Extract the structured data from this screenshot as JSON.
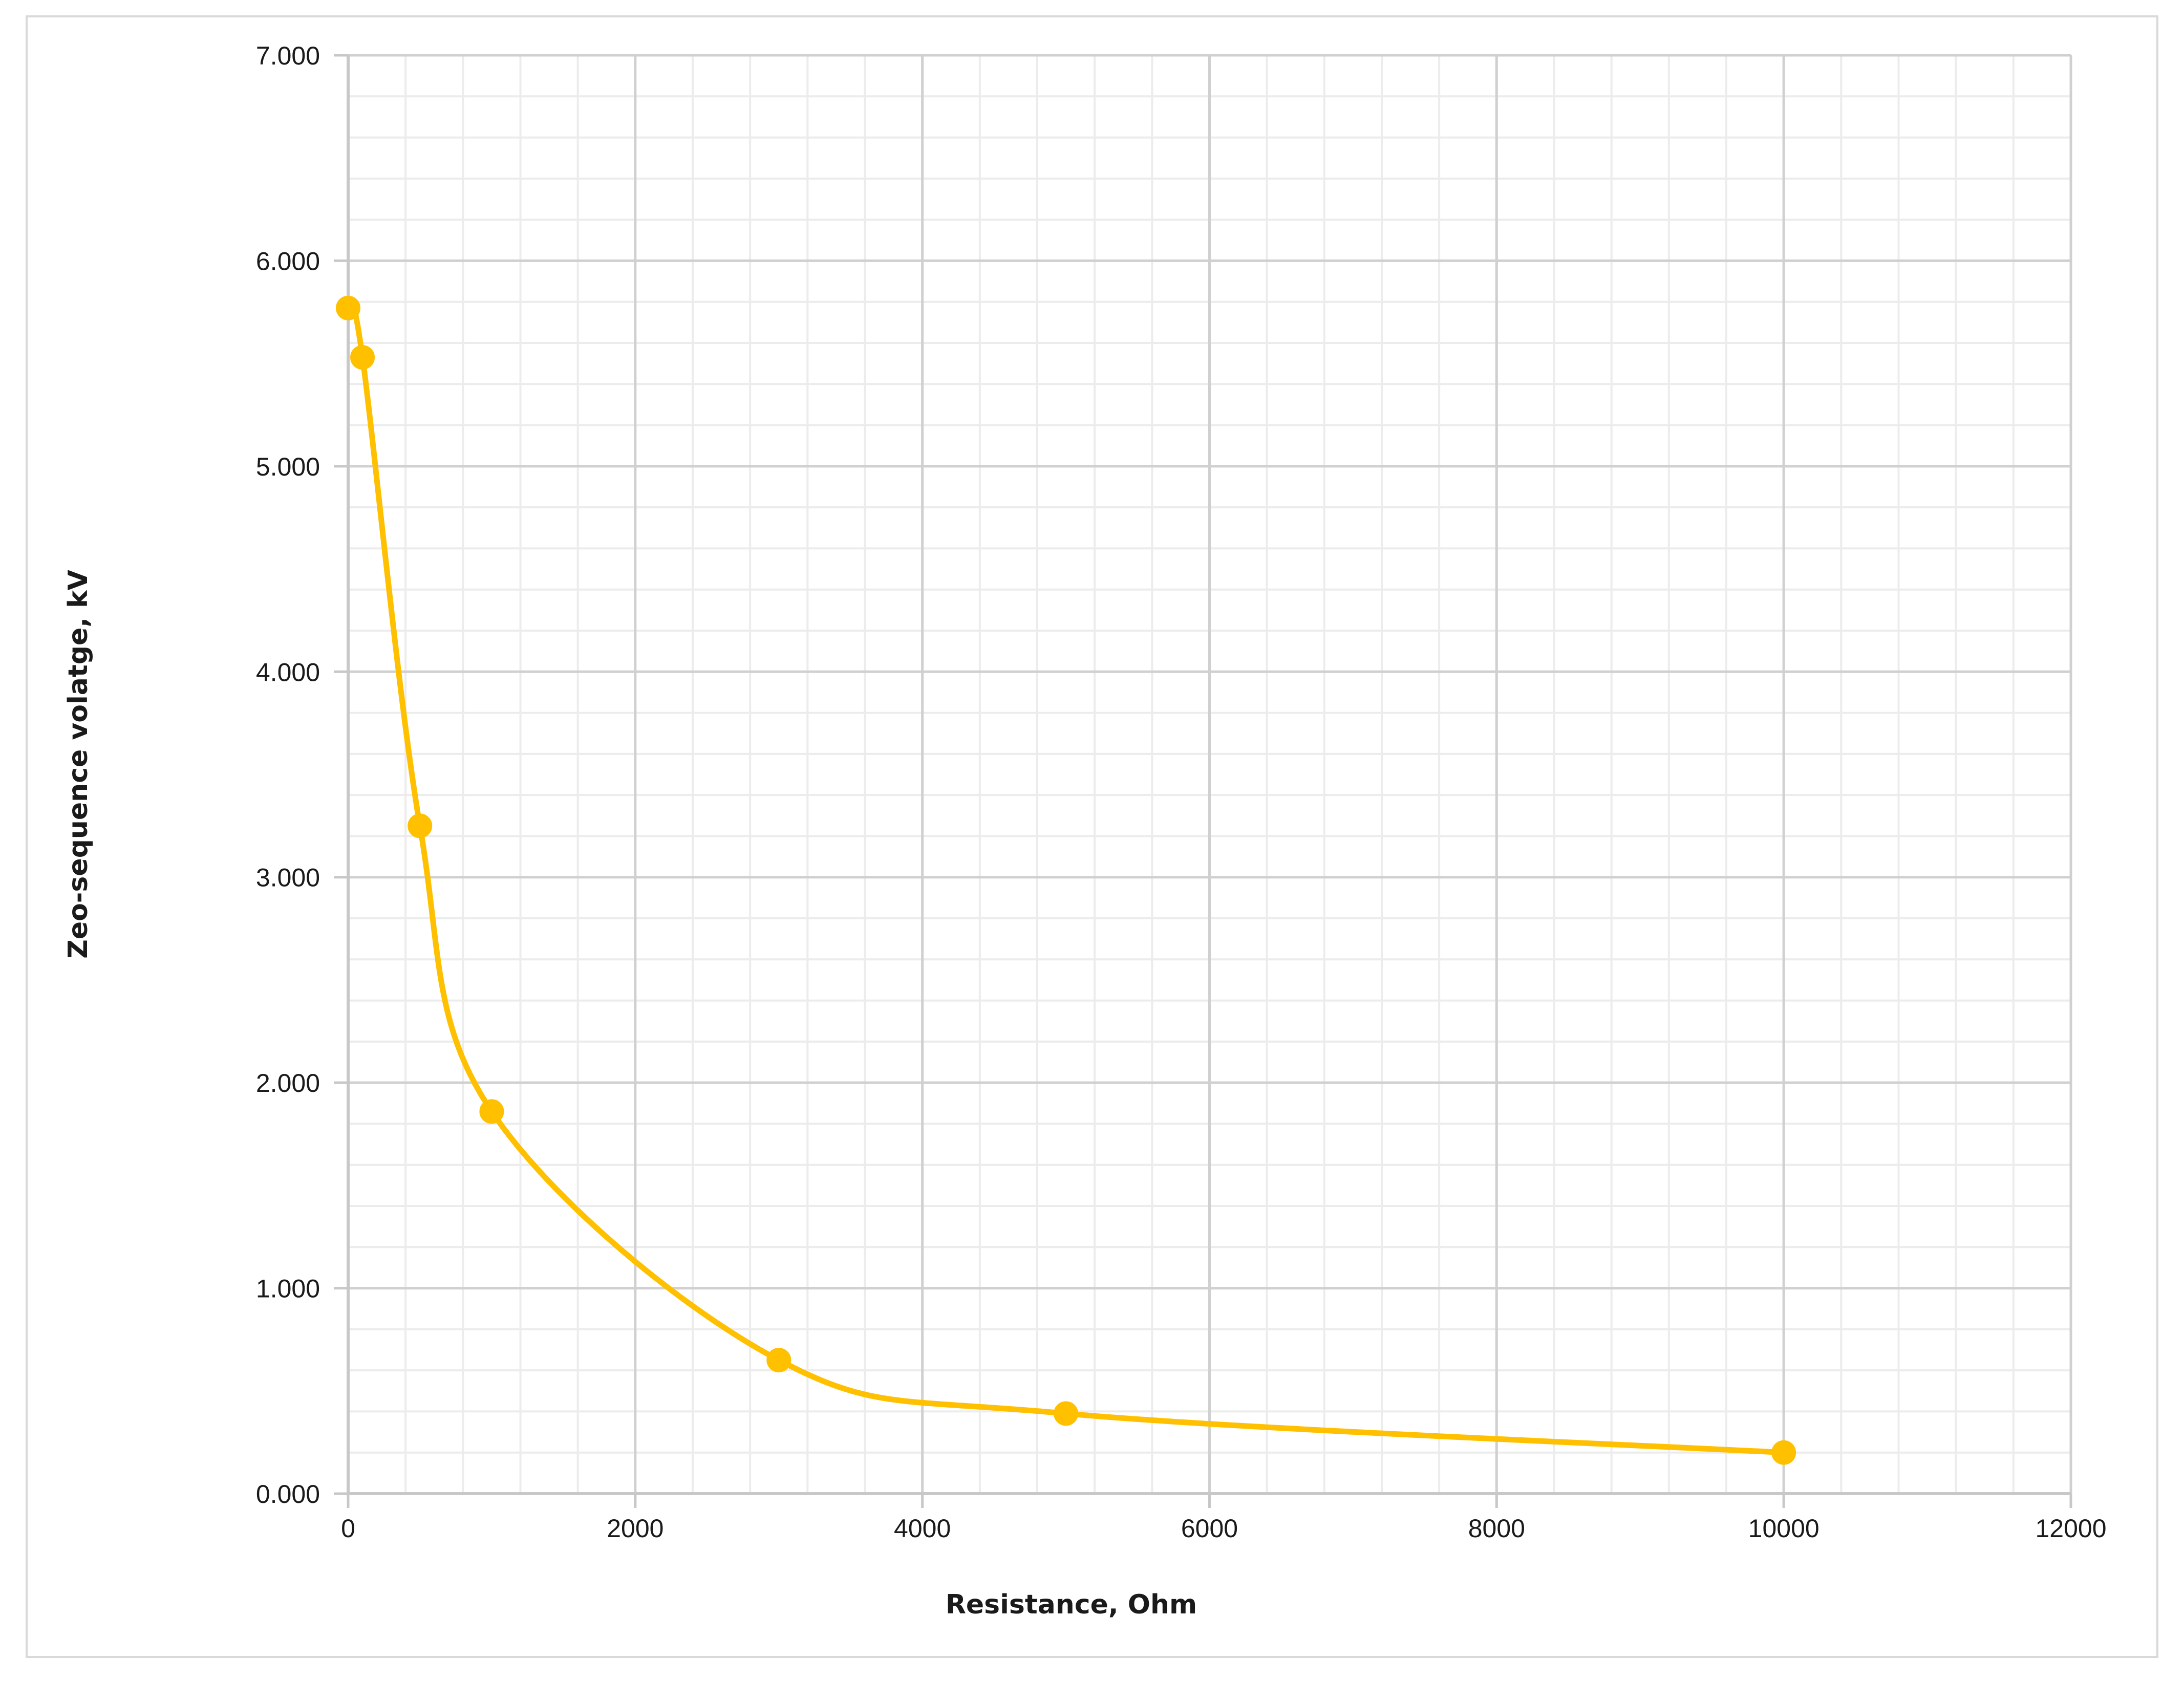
{
  "chart_data": {
    "type": "scatter",
    "title": "",
    "xlabel": "Resistance, Ohm",
    "ylabel": "Zeo-sequence volatge, kV",
    "xlim": [
      0,
      12000
    ],
    "ylim": [
      0,
      7
    ],
    "x_major_step": 2000,
    "x_minor_step": 400,
    "y_major_step": 1,
    "y_minor_step": 0.2,
    "grid": true,
    "legend": "none",
    "smooth_line": true,
    "x_tick_labels": [
      "0",
      "2000",
      "4000",
      "6000",
      "8000",
      "10000",
      "12000"
    ],
    "y_tick_labels": [
      "0.000",
      "1.000",
      "2.000",
      "3.000",
      "4.000",
      "5.000",
      "6.000",
      "7.000"
    ],
    "series": [
      {
        "color": "#FFC000",
        "x": [
          0,
          100,
          500,
          1000,
          3000,
          5000,
          10000
        ],
        "y": [
          5.77,
          5.53,
          3.25,
          1.86,
          0.65,
          0.39,
          0.2
        ]
      }
    ]
  }
}
